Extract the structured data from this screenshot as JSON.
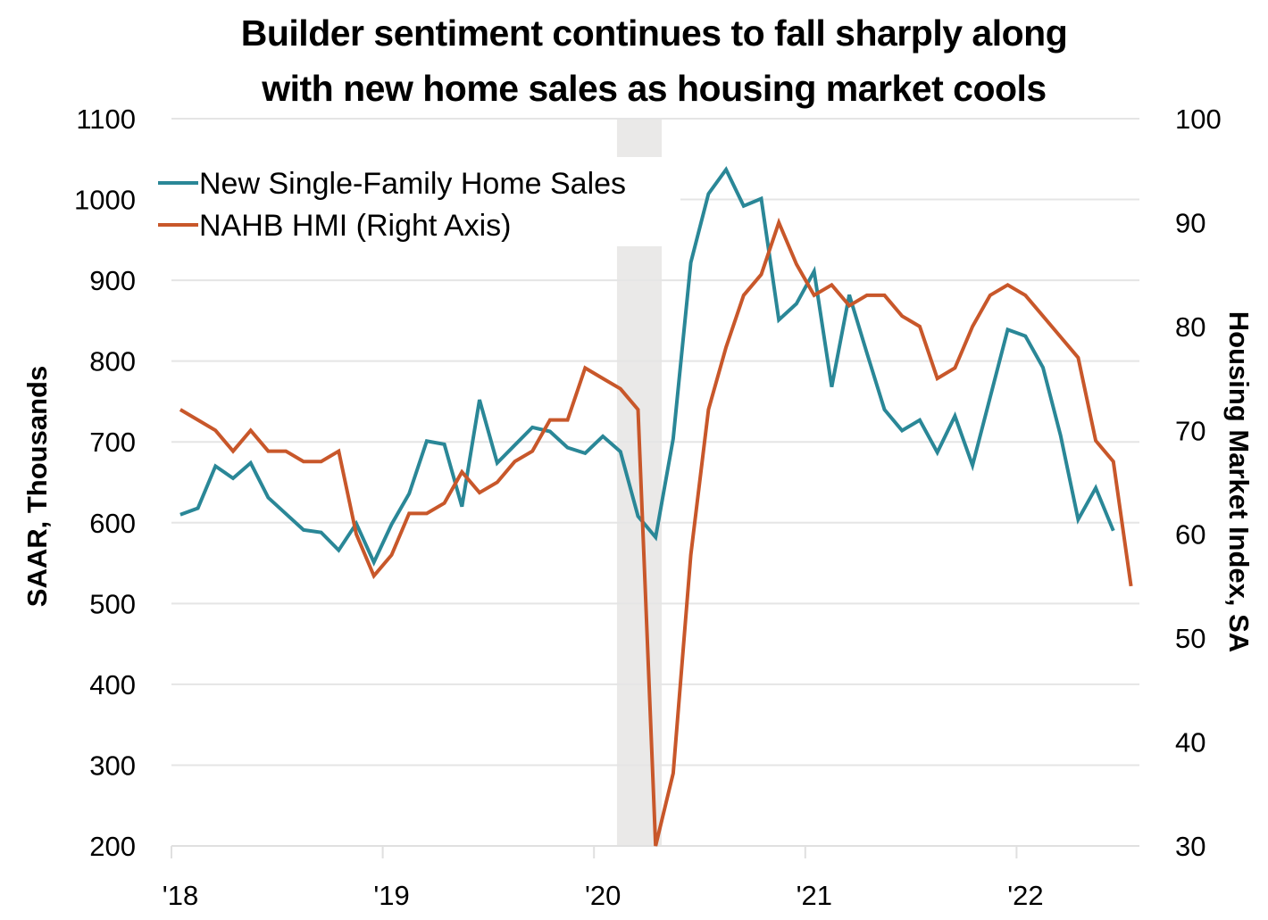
{
  "chart_data": {
    "type": "line",
    "title_lines": [
      "Builder sentiment continues to fall sharply along",
      "with new home sales as housing market cools"
    ],
    "xlabel": "",
    "ylabel_left": "SAAR, Thousands",
    "ylabel_right": "Housing Market Index, SA",
    "x_tick_labels": [
      "'18",
      "'19",
      "'20",
      "'21",
      "'22"
    ],
    "x_start": "2018-01",
    "frequency": "monthly",
    "y_left_lim": [
      200,
      1100
    ],
    "y_left_ticks": [
      200,
      300,
      400,
      500,
      600,
      700,
      800,
      900,
      1000,
      1100
    ],
    "y_right_lim": [
      30,
      100
    ],
    "y_right_ticks": [
      30,
      40,
      50,
      60,
      70,
      80,
      90,
      100
    ],
    "grid": "horizontal",
    "legend_position": "top-left",
    "shaded_regions": [
      {
        "label": "recession",
        "start": "2020-02",
        "end": "2020-04",
        "color": "#EAE9E8"
      }
    ],
    "series": [
      {
        "name": "New Single-Family Home Sales",
        "axis": "left",
        "color": "#2A8797",
        "values": [
          610,
          618,
          670,
          655,
          674,
          631,
          611,
          591,
          588,
          566,
          599,
          551,
          598,
          636,
          701,
          697,
          620,
          752,
          674,
          696,
          718,
          713,
          693,
          686,
          707,
          688,
          608,
          582,
          704,
          922,
          1007,
          1037,
          992,
          1001,
          851,
          871,
          911,
          768,
          882,
          810,
          740,
          714,
          727,
          687,
          732,
          671,
          755,
          839,
          831,
          792,
          708,
          604,
          643,
          590
        ]
      },
      {
        "name": "NAHB HMI (Right Axis)",
        "axis": "right",
        "color": "#C8572A",
        "values": [
          72,
          71,
          70,
          68,
          70,
          68,
          68,
          67,
          67,
          68,
          60,
          56,
          58,
          62,
          62,
          63,
          66,
          64,
          65,
          67,
          68,
          71,
          71,
          76,
          75,
          74,
          72,
          30,
          37,
          58,
          72,
          78,
          83,
          85,
          90,
          86,
          83,
          84,
          82,
          83,
          83,
          81,
          80,
          75,
          76,
          80,
          83,
          84,
          83,
          81,
          79,
          77,
          69,
          67,
          55
        ]
      }
    ]
  }
}
